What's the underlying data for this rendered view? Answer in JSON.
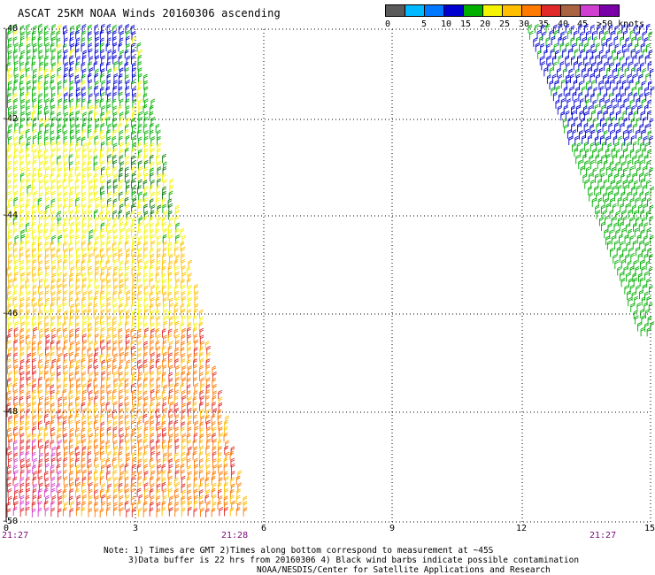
{
  "title": "ASCAT 25KM NOAA Winds 20160306 ascending",
  "legend": {
    "colors": [
      "#5a5a5a",
      "#00b8ff",
      "#0078ff",
      "#0000d0",
      "#00b000",
      "#f4f400",
      "#ffbe00",
      "#ff7a00",
      "#e02828",
      "#a86440",
      "#d040d0",
      "#7a00a8"
    ],
    "labels": [
      "0",
      "5",
      "10",
      "15",
      "20",
      "25",
      "30",
      "35",
      "40",
      "45",
      ">50 knots"
    ]
  },
  "map": {
    "lat_labels": [
      "-40",
      "-42",
      "-44",
      "-46",
      "-48",
      "-50"
    ],
    "lon_labels": [
      "0",
      "3",
      "6",
      "9",
      "12",
      "15"
    ],
    "lat_range": [
      -50,
      -40
    ],
    "lon_range": [
      0,
      15
    ]
  },
  "times": [
    "21:27",
    "21:28",
    "21:27"
  ],
  "notes": {
    "line1": "Note: 1) Times are GMT 2)Times along bottom correspond to measurement at ~45S",
    "line2": "3)Data buffer is 22 hrs from 20160306 4) Black wind barbs indicate possible contamination",
    "line3": "NOAA/NESDIS/Center for Satellite Applications and Research"
  }
}
